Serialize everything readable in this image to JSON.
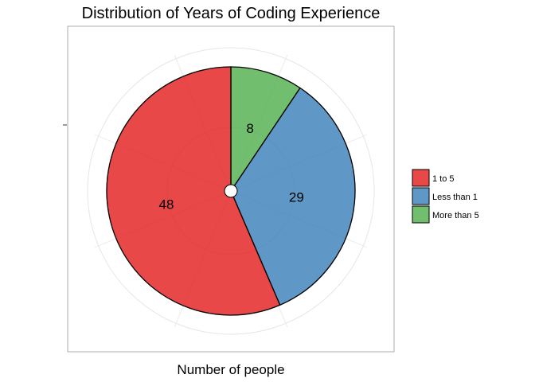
{
  "chart_data": {
    "type": "pie",
    "title": "Distribution of Years of Coding Experience",
    "xlabel": "Number of people",
    "ylabel": "",
    "categories": [
      "1 to 5",
      "Less than 1",
      "More than 5"
    ],
    "values": [
      48,
      29,
      8
    ],
    "slice_labels": [
      "48",
      "29",
      "8"
    ],
    "colors": [
      "#E41A1C",
      "#377EB8",
      "#4DAF4A"
    ],
    "slice_alpha": 0.8,
    "start_angle_deg": 0,
    "direction": "clockwise",
    "slice_order": [
      "More than 5",
      "Less than 1",
      "1 to 5"
    ],
    "legend": {
      "position": "right",
      "entries": [
        "1 to 5",
        "Less than 1",
        "More than 5"
      ]
    },
    "grid": true,
    "panel_border": true
  }
}
